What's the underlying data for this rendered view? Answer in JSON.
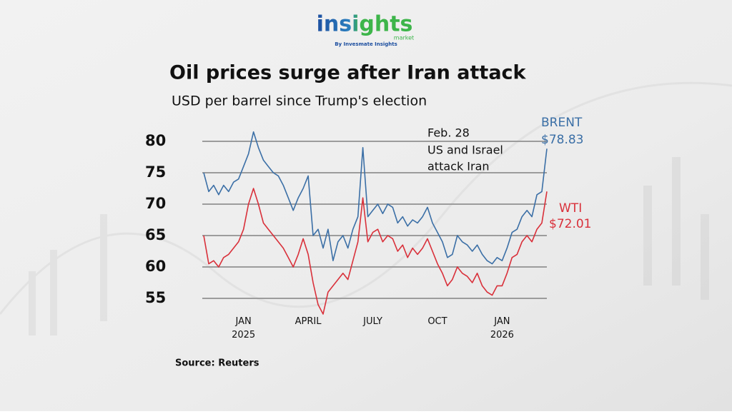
{
  "logo": {
    "brand": "insights",
    "sub": "market",
    "byline": "By Invesmate Insights"
  },
  "chart_data": {
    "type": "line",
    "title": "Oil prices surge after Iran attack",
    "subtitle": "USD per barrel since Trump's election",
    "source": "Source: Reuters",
    "annotation": [
      "Feb. 28",
      "US and Israel",
      "attack Iran"
    ],
    "categories": [
      null,
      null,
      null,
      null,
      null,
      null,
      null,
      null,
      "JAN 2025",
      null,
      null,
      null,
      null,
      null,
      null,
      null,
      null,
      null,
      null,
      null,
      null,
      "APRIL",
      null,
      null,
      null,
      null,
      null,
      null,
      null,
      null,
      null,
      null,
      null,
      null,
      "JULY",
      null,
      null,
      null,
      null,
      null,
      null,
      null,
      null,
      null,
      null,
      null,
      null,
      "OCT",
      null,
      null,
      null,
      null,
      null,
      null,
      null,
      null,
      null,
      null,
      null,
      null,
      "JAN 2026",
      null,
      null,
      null,
      null,
      null,
      null,
      null,
      null,
      null
    ],
    "ylim": [
      51,
      84
    ],
    "yticks": [
      55,
      60,
      65,
      70,
      75,
      80
    ],
    "grid": true,
    "series": [
      {
        "name": "BRENT",
        "color": "#3b6fa6",
        "values": [
          75,
          72,
          73,
          71.5,
          73,
          72,
          73.5,
          74,
          76,
          78,
          81.5,
          79,
          77,
          76,
          75,
          74.5,
          73,
          71,
          69,
          71,
          72.5,
          74.5,
          65,
          66,
          63,
          66,
          61,
          64,
          65,
          63,
          66,
          68,
          79,
          68,
          69,
          70,
          68.5,
          70,
          69.5,
          67,
          68,
          66.5,
          67.5,
          67,
          68,
          69.5,
          67,
          65.5,
          64,
          61.5,
          62,
          65,
          64,
          63.5,
          62.5,
          63.5,
          62,
          61,
          60.5,
          61.5,
          61,
          63,
          65.5,
          66,
          68,
          69,
          68,
          71.5,
          72,
          78.83
        ],
        "value_labels": [
          null,
          null,
          null,
          null,
          null,
          null,
          null,
          null,
          null,
          null,
          null,
          null,
          null,
          null,
          null,
          null,
          null,
          null,
          null,
          null,
          null,
          null,
          null,
          null,
          null,
          null,
          null,
          null,
          null,
          null,
          null,
          null,
          null,
          null,
          null,
          null,
          null,
          null,
          null,
          null,
          null,
          null,
          null,
          null,
          null,
          null,
          null,
          null,
          null,
          null,
          null,
          null,
          null,
          null,
          null,
          null,
          null,
          null,
          null,
          null,
          null,
          null,
          null,
          null,
          null,
          null,
          null,
          null,
          null,
          "$78.83"
        ]
      },
      {
        "name": "WTI",
        "color": "#d9303a",
        "values": [
          65,
          60.5,
          61,
          60,
          61.5,
          62,
          63,
          64,
          66,
          70,
          72.5,
          70,
          67,
          66,
          65,
          64,
          63,
          61.5,
          60,
          62,
          64.5,
          62,
          57.5,
          54,
          52.5,
          56,
          57,
          58,
          59,
          58,
          61,
          64,
          71,
          64,
          65.5,
          66,
          64,
          65,
          64.5,
          62.5,
          63.5,
          61.5,
          63,
          62,
          63,
          64.5,
          62.5,
          60.5,
          59,
          57,
          58,
          60,
          59,
          58.5,
          57.5,
          59,
          57,
          56,
          55.5,
          57,
          57,
          59,
          61.5,
          62,
          64,
          65,
          64,
          66,
          67,
          72.01
        ],
        "value_labels": [
          null,
          null,
          null,
          null,
          null,
          null,
          null,
          null,
          null,
          null,
          null,
          null,
          null,
          null,
          null,
          null,
          null,
          null,
          null,
          null,
          null,
          null,
          null,
          null,
          null,
          null,
          null,
          null,
          null,
          null,
          null,
          null,
          null,
          null,
          null,
          null,
          null,
          null,
          null,
          null,
          null,
          null,
          null,
          null,
          null,
          null,
          null,
          null,
          null,
          null,
          null,
          null,
          null,
          null,
          null,
          null,
          null,
          null,
          null,
          null,
          null,
          null,
          null,
          null,
          null,
          null,
          null,
          null,
          null,
          "$72.01"
        ]
      }
    ]
  }
}
